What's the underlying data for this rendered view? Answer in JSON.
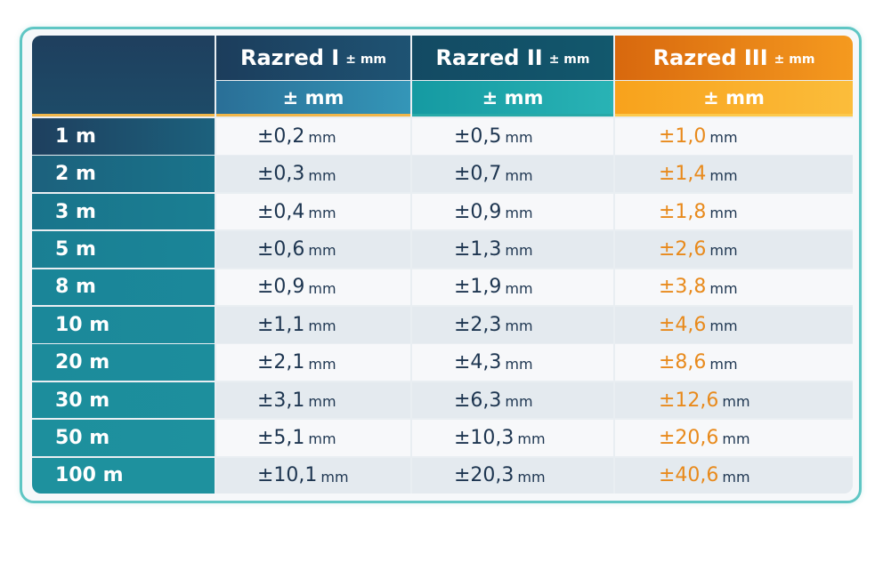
{
  "table": {
    "header": [
      {
        "title": "Razred I",
        "unit": "± mm",
        "sub": "± mm"
      },
      {
        "title": "Razred II",
        "unit": "± mm",
        "sub": "± mm"
      },
      {
        "title": "Razred III",
        "unit": "± mm",
        "sub": "± mm"
      }
    ],
    "rows": [
      {
        "length": "1 m",
        "values": [
          "±0,2",
          "±0,5",
          "±1,0"
        ]
      },
      {
        "length": "2 m",
        "values": [
          "±0,3",
          "±0,7",
          "±1,4"
        ]
      },
      {
        "length": "3 m",
        "values": [
          "±0,4",
          "±0,9",
          "±1,8"
        ]
      },
      {
        "length": "5 m",
        "values": [
          "±0,6",
          "±1,3",
          "±2,6"
        ]
      },
      {
        "length": "8 m",
        "values": [
          "±0,9",
          "±1,9",
          "±3,8"
        ]
      },
      {
        "length": "10 m",
        "values": [
          "±1,1",
          "±2,3",
          "±4,6"
        ]
      },
      {
        "length": "20 m",
        "values": [
          "±2,1",
          "±4,3",
          "±8,6"
        ]
      },
      {
        "length": "30 m",
        "values": [
          "±3,1",
          "±6,3",
          "±12,6"
        ]
      },
      {
        "length": "50 m",
        "values": [
          "±5,1",
          "±10,3",
          "±20,6"
        ]
      },
      {
        "length": "100 m",
        "values": [
          "±10,1",
          "±20,3",
          "±40,6"
        ]
      }
    ],
    "value_unit": "mm",
    "colors": {
      "class_i": "#1d3550",
      "class_ii": "#1d3550",
      "class_iii": "#e88a1c",
      "frame": "#5fc6c4"
    }
  }
}
